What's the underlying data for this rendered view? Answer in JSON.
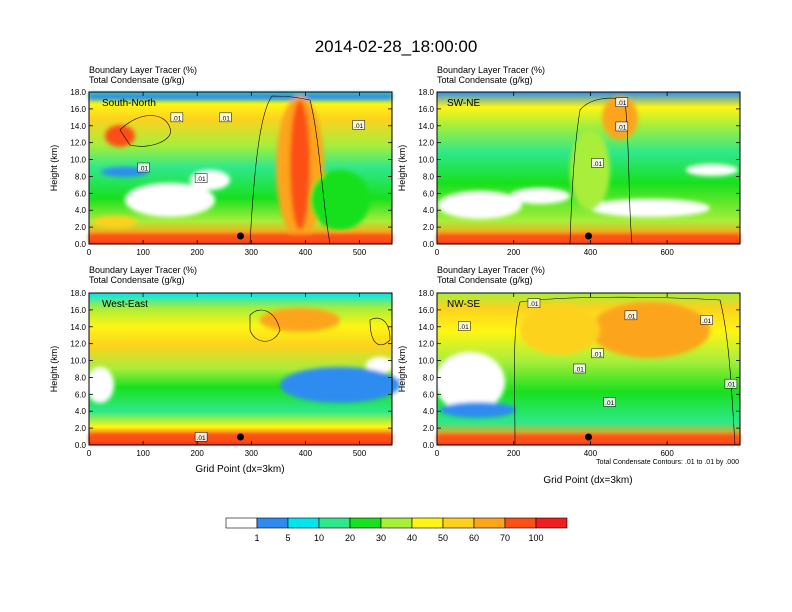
{
  "title": "2014-02-28_18:00:00",
  "footnote": "Total Condensate Contours: .01 to .01 by .000",
  "colorbar": {
    "colors": [
      "#ffffff",
      "#2e8cf0",
      "#00e6f0",
      "#2ee88a",
      "#18e01e",
      "#a8ee3a",
      "#fff514",
      "#fcd21e",
      "#fca51c",
      "#fc5014",
      "#f01e1e"
    ],
    "labels": [
      "1",
      "5",
      "10",
      "20",
      "30",
      "40",
      "50",
      "60",
      "70",
      "100"
    ]
  },
  "chart_data": [
    {
      "type": "heatmap",
      "panel_label": "South-North",
      "header": [
        "Boundary Layer Tracer    (%)",
        "Total Condensate    (g/kg)"
      ],
      "xlabel": "",
      "ylabel": "Height (km)",
      "xlim": [
        0,
        560
      ],
      "ylim": [
        0,
        18
      ],
      "xticks": [
        "0",
        "100",
        "200",
        "300",
        "400",
        "500"
      ],
      "yticks": [
        "0.0",
        "2.0",
        "4.0",
        "6.0",
        "8.0",
        "10.0",
        "12.0",
        "14.0",
        "16.0",
        "18.0"
      ],
      "contour_labels": [
        ".01",
        ".01",
        ".01",
        ".01",
        ".01"
      ],
      "marker_x": 280
    },
    {
      "type": "heatmap",
      "panel_label": "SW-NE",
      "header": [
        "Boundary Layer Tracer    (%)",
        "Total Condensate    (g/kg)"
      ],
      "xlabel": "",
      "ylabel": "Height (km)",
      "xlim": [
        0,
        790
      ],
      "ylim": [
        0,
        18
      ],
      "xticks": [
        "0",
        "200",
        "400",
        "600"
      ],
      "yticks": [
        "0.0",
        "2.0",
        "4.0",
        "6.0",
        "8.0",
        "10.0",
        "12.0",
        "14.0",
        "16.0",
        "18.0"
      ],
      "contour_labels": [
        ".01",
        ".01",
        ".01"
      ],
      "marker_x": 395
    },
    {
      "type": "heatmap",
      "panel_label": "West-East",
      "header": [
        "Boundary Layer Tracer    (%)",
        "Total Condensate    (g/kg)"
      ],
      "xlabel": "Grid Point (dx=3km)",
      "ylabel": "Height (km)",
      "xlim": [
        0,
        560
      ],
      "ylim": [
        0,
        18
      ],
      "xticks": [
        "0",
        "100",
        "200",
        "300",
        "400",
        "500"
      ],
      "yticks": [
        "0.0",
        "2.0",
        "4.0",
        "6.0",
        "8.0",
        "10.0",
        "12.0",
        "14.0",
        "16.0",
        "18.0"
      ],
      "contour_labels": [
        ".01"
      ],
      "marker_x": 280
    },
    {
      "type": "heatmap",
      "panel_label": "NW-SE",
      "header": [
        "Boundary Layer Tracer    (%)",
        "Total Condensate    (g/kg)"
      ],
      "xlabel": "Grid Point (dx=3km)",
      "ylabel": "Height (km)",
      "xlim": [
        0,
        790
      ],
      "ylim": [
        0,
        18
      ],
      "xticks": [
        "0",
        "200",
        "400",
        "600"
      ],
      "yticks": [
        "0.0",
        "2.0",
        "4.0",
        "6.0",
        "8.0",
        "10.0",
        "12.0",
        "14.0",
        "16.0",
        "18.0"
      ],
      "contour_labels": [
        ".01",
        ".01",
        ".01",
        ".01",
        ".01",
        ".01",
        ".01",
        ".01"
      ],
      "marker_x": 395
    }
  ]
}
